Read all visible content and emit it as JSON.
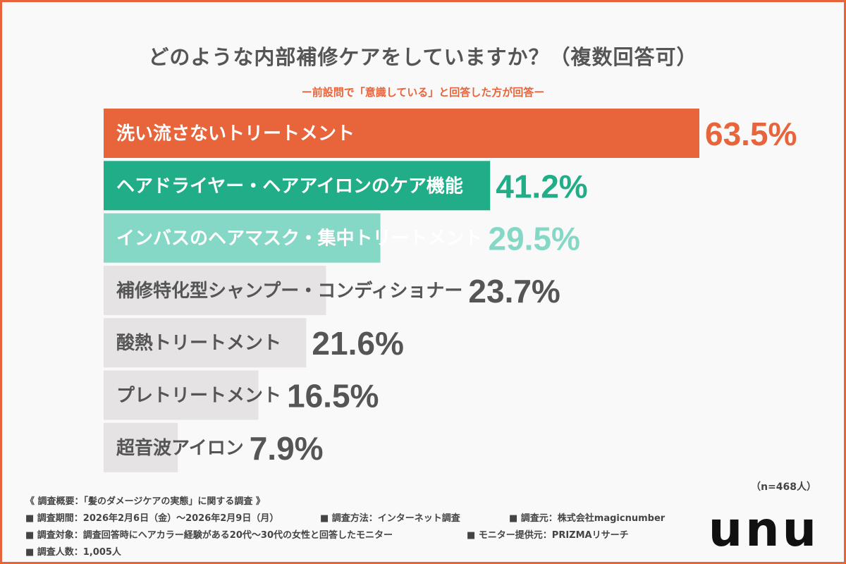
{
  "header": {
    "title": "どのような内部補修ケアをしていますか？（複数回答可）",
    "subtitle": "ー前設問で「意識している」と回答した方が回答ー"
  },
  "chart_data": {
    "type": "bar",
    "orientation": "horizontal",
    "title": "どのような内部補修ケアをしていますか？（複数回答可）",
    "categories": [
      "洗い流さないトリートメント",
      "ヘアドライヤー・ヘアアイロンのケア機能",
      "インバスのヘアマスク・集中トリートメント",
      "補修特化型シャンプー・コンディショナー",
      "酸熱トリートメント",
      "プレトリートメント",
      "超音波アイロン"
    ],
    "values": [
      63.5,
      41.2,
      29.5,
      23.7,
      21.6,
      16.5,
      7.9
    ],
    "value_labels": [
      "63.5%",
      "41.2%",
      "29.5%",
      "23.7%",
      "21.6%",
      "16.5%",
      "7.9%"
    ],
    "unit": "%",
    "xlim": [
      0,
      100
    ],
    "colors": [
      "#e8643a",
      "#20ad87",
      "#86d8c6",
      "#e5e3e3",
      "#e5e3e3",
      "#e5e3e3",
      "#e5e3e3"
    ],
    "label_colors": [
      "#ffffff",
      "#ffffff",
      "#ffffff",
      "#555555",
      "#555555",
      "#555555",
      "#555555"
    ],
    "value_colors": [
      "#e8643a",
      "#20ad87",
      "#86d8c6",
      "#555555",
      "#555555",
      "#555555",
      "#555555"
    ]
  },
  "footer": {
    "sample_size": "（n=468人）",
    "overview": "《 調査概要：「髪のダメージケアの実態」に関する調査 》",
    "period": "■ 調査期間：2026年2月6日（金）〜2026年2月9日（月）",
    "method": "■ 調査方法：インターネット調査",
    "source": "■ 調査元：株式会社magicnumber",
    "target": "■ 調査対象：調査回答時にヘアカラー経験がある20代〜30代の女性と回答したモニター",
    "provider": "■ モニター提供元：PRIZMAリサーチ",
    "count": "■ 調査人数：1,005人",
    "logo": "unu"
  }
}
